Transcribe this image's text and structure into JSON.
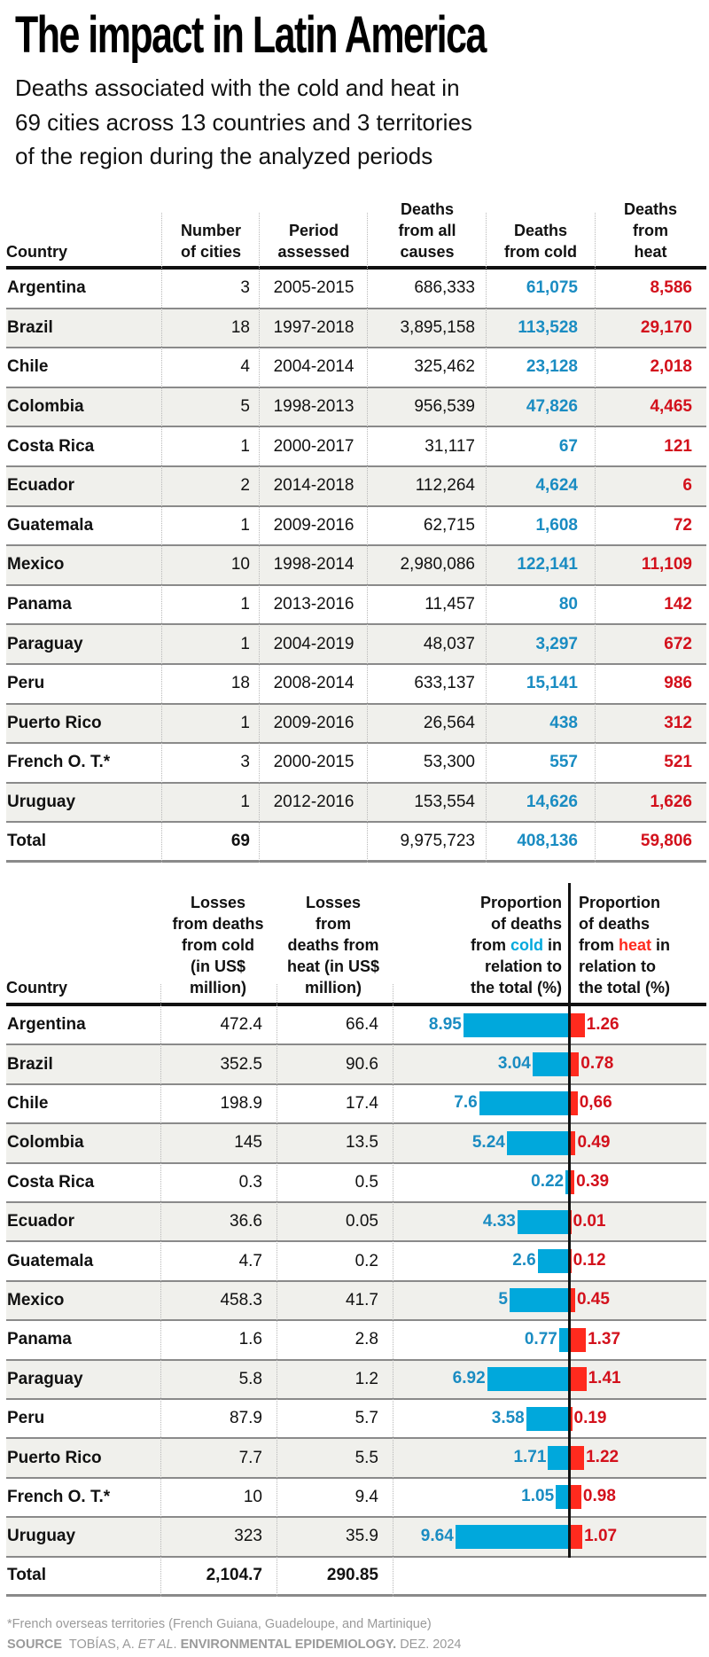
{
  "header": {
    "title": "The impact in Latin America",
    "subtitle_lines": [
      "Deaths associated with the cold and heat in",
      "69 cities across 13 countries and 3 territories",
      "of the region during the analyzed periods"
    ]
  },
  "colors": {
    "cold_bar": "#00a8dc",
    "heat_bar": "#ff2a1e",
    "cold_text": "#1a8cc2",
    "heat_text": "#d3111c",
    "shaded_row": "#f0f0ec"
  },
  "table1": {
    "headers": {
      "country": "Country",
      "cities": [
        "Number",
        "of cities"
      ],
      "period": [
        "Period",
        "assessed"
      ],
      "all_causes": [
        "Deaths",
        "from all",
        "causes"
      ],
      "cold": [
        "Deaths",
        "from cold"
      ],
      "heat": [
        "Deaths",
        "from",
        "heat"
      ]
    },
    "rows": [
      {
        "country": "Argentina",
        "cities": "3",
        "period": "2005-2015",
        "all": "686,333",
        "cold": "61,075",
        "heat": "8,586"
      },
      {
        "country": "Brazil",
        "cities": "18",
        "period": "1997-2018",
        "all": "3,895,158",
        "cold": "113,528",
        "heat": "29,170"
      },
      {
        "country": "Chile",
        "cities": "4",
        "period": "2004-2014",
        "all": "325,462",
        "cold": "23,128",
        "heat": "2,018"
      },
      {
        "country": "Colombia",
        "cities": "5",
        "period": "1998-2013",
        "all": "956,539",
        "cold": "47,826",
        "heat": "4,465"
      },
      {
        "country": "Costa Rica",
        "cities": "1",
        "period": "2000-2017",
        "all": "31,117",
        "cold": "67",
        "heat": "121"
      },
      {
        "country": "Ecuador",
        "cities": "2",
        "period": "2014-2018",
        "all": "112,264",
        "cold": "4,624",
        "heat": "6"
      },
      {
        "country": "Guatemala",
        "cities": "1",
        "period": "2009-2016",
        "all": "62,715",
        "cold": "1,608",
        "heat": "72"
      },
      {
        "country": "Mexico",
        "cities": "10",
        "period": "1998-2014",
        "all": "2,980,086",
        "cold": "122,141",
        "heat": "11,109"
      },
      {
        "country": "Panama",
        "cities": "1",
        "period": "2013-2016",
        "all": "11,457",
        "cold": "80",
        "heat": "142"
      },
      {
        "country": "Paraguay",
        "cities": "1",
        "period": "2004-2019",
        "all": "48,037",
        "cold": "3,297",
        "heat": "672"
      },
      {
        "country": "Peru",
        "cities": "18",
        "period": "2008-2014",
        "all": "633,137",
        "cold": "15,141",
        "heat": "986"
      },
      {
        "country": "Puerto Rico",
        "cities": "1",
        "period": "2009-2016",
        "all": "26,564",
        "cold": "438",
        "heat": "312"
      },
      {
        "country": "French O. T.*",
        "cities": "3",
        "period": "2000-2015",
        "all": "53,300",
        "cold": "557",
        "heat": "521"
      },
      {
        "country": "Uruguay",
        "cities": "1",
        "period": "2012-2016",
        "all": "153,554",
        "cold": "14,626",
        "heat": "1,626"
      }
    ],
    "total": {
      "country": "Total",
      "cities": "69",
      "period": "",
      "all": "9,975,723",
      "cold": "408,136",
      "heat": "59,806"
    }
  },
  "table2": {
    "headers": {
      "country": "Country",
      "loss_cold": [
        "Losses",
        "from deaths",
        "from cold",
        "(in US$",
        "million)"
      ],
      "loss_heat": [
        "Losses",
        "from",
        "deaths from",
        "heat (in US$",
        "million)"
      ],
      "prop_cold": {
        "l1": "Proportion",
        "l2": "of deaths",
        "l3_pre": "from ",
        "l3_hl": "cold",
        "l3_post": " in",
        "l4": "relation to",
        "l5": "the total (%)"
      },
      "prop_heat": {
        "l1": "Proportion",
        "l2": "of deaths",
        "l3_pre": "from ",
        "l3_hl": "heat",
        "l3_post": " in",
        "l4": "relation to",
        "l5": "the total (%)"
      }
    },
    "rows": [
      {
        "country": "Argentina",
        "loss_cold": "472.4",
        "loss_heat": "66.4",
        "cold_label": "8.95",
        "heat_label": "1.26"
      },
      {
        "country": "Brazil",
        "loss_cold": "352.5",
        "loss_heat": "90.6",
        "cold_label": "3.04",
        "heat_label": "0.78"
      },
      {
        "country": "Chile",
        "loss_cold": "198.9",
        "loss_heat": "17.4",
        "cold_label": "7.6",
        "heat_label": "0,66"
      },
      {
        "country": "Colombia",
        "loss_cold": "145",
        "loss_heat": "13.5",
        "cold_label": "5.24",
        "heat_label": "0.49"
      },
      {
        "country": "Costa Rica",
        "loss_cold": "0.3",
        "loss_heat": "0.5",
        "cold_label": "0.22",
        "heat_label": "0.39"
      },
      {
        "country": "Ecuador",
        "loss_cold": "36.6",
        "loss_heat": "0.05",
        "cold_label": "4.33",
        "heat_label": "0.01"
      },
      {
        "country": "Guatemala",
        "loss_cold": "4.7",
        "loss_heat": "0.2",
        "cold_label": "2.6",
        "heat_label": "0.12"
      },
      {
        "country": "Mexico",
        "loss_cold": "458.3",
        "loss_heat": "41.7",
        "cold_label": "5",
        "heat_label": "0.45"
      },
      {
        "country": "Panama",
        "loss_cold": "1.6",
        "loss_heat": "2.8",
        "cold_label": "0.77",
        "heat_label": "1.37"
      },
      {
        "country": "Paraguay",
        "loss_cold": "5.8",
        "loss_heat": "1.2",
        "cold_label": "6.92",
        "heat_label": "1.41"
      },
      {
        "country": "Peru",
        "loss_cold": "87.9",
        "loss_heat": "5.7",
        "cold_label": "3.58",
        "heat_label": "0.19"
      },
      {
        "country": "Puerto Rico",
        "loss_cold": "7.7",
        "loss_heat": "5.5",
        "cold_label": "1.71",
        "heat_label": "1.22"
      },
      {
        "country": "French O. T.*",
        "loss_cold": "10",
        "loss_heat": "9.4",
        "cold_label": "1.05",
        "heat_label": "0.98"
      },
      {
        "country": "Uruguay",
        "loss_cold": "323",
        "loss_heat": "35.9",
        "cold_label": "9.64",
        "heat_label": "1.07"
      }
    ],
    "total": {
      "country": "Total",
      "loss_cold": "2,104.7",
      "loss_heat": "290.85"
    }
  },
  "footer": {
    "footnote": "*French overseas territories (French Guiana, Guadeloupe, and Martinique)",
    "source_label": "SOURCE",
    "source_author": "TOBÍAS, A.",
    "source_etal": "ET AL",
    "source_sep": ".",
    "source_journal": "ENVIRONMENTAL EPIDEMIOLOGY.",
    "source_date": "DEZ. 2024"
  },
  "chart_data": {
    "type": "bar",
    "title": "Proportion of deaths from cold / heat in relation to the total (%)",
    "orientation": "horizontal-diverging",
    "categories": [
      "Argentina",
      "Brazil",
      "Chile",
      "Colombia",
      "Costa Rica",
      "Ecuador",
      "Guatemala",
      "Mexico",
      "Panama",
      "Paraguay",
      "Peru",
      "Puerto Rico",
      "French O. T.*",
      "Uruguay"
    ],
    "series": [
      {
        "name": "cold",
        "direction": "left",
        "values": [
          8.95,
          3.04,
          7.6,
          5.24,
          0.22,
          4.33,
          2.6,
          5,
          0.77,
          6.92,
          3.58,
          1.71,
          1.05,
          9.64
        ]
      },
      {
        "name": "heat",
        "direction": "right",
        "values": [
          1.26,
          0.78,
          0.66,
          0.49,
          0.39,
          0.01,
          0.12,
          0.45,
          1.37,
          1.41,
          0.19,
          1.22,
          0.98,
          1.07
        ]
      }
    ],
    "xlabel": "",
    "ylabel": "",
    "xlim": [
      0,
      10
    ],
    "grid": false
  }
}
